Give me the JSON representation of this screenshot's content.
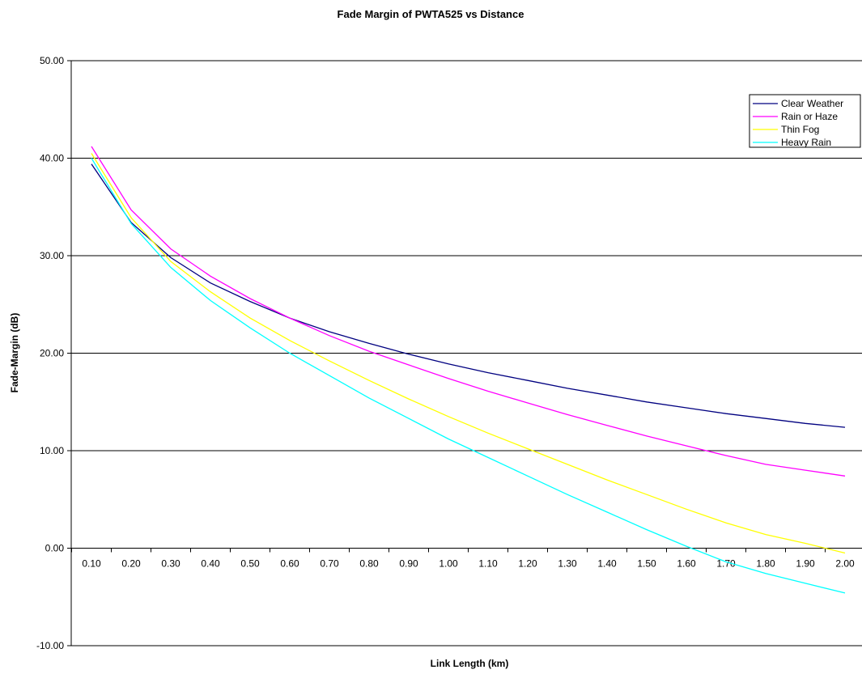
{
  "chart_data": {
    "type": "line",
    "title": "Fade Margin of PWTA525 vs Distance",
    "xlabel": "Link Length (km)",
    "ylabel": "Fade-Margin (dB)",
    "ylim": [
      -10,
      50
    ],
    "yticks": [
      "-10.00",
      "0.00",
      "10.00",
      "20.00",
      "30.00",
      "40.00",
      "50.00"
    ],
    "categories": [
      "0.10",
      "0.20",
      "0.30",
      "0.40",
      "0.50",
      "0.60",
      "0.70",
      "0.80",
      "0.90",
      "1.00",
      "1.10",
      "1.20",
      "1.30",
      "1.40",
      "1.50",
      "1.60",
      "1.70",
      "1.80",
      "1.90",
      "2.00"
    ],
    "grid": "horizontal",
    "legend_position": "top-right",
    "series": [
      {
        "name": "Clear Weather",
        "color": "#000080",
        "values": [
          39.4,
          33.4,
          29.8,
          27.2,
          25.3,
          23.6,
          22.2,
          21.0,
          19.9,
          18.9,
          18.0,
          17.2,
          16.4,
          15.7,
          15.0,
          14.4,
          13.8,
          13.3,
          12.8,
          12.4
        ]
      },
      {
        "name": "Rain or Haze",
        "color": "#FF00FF",
        "values": [
          41.2,
          34.7,
          30.7,
          27.9,
          25.6,
          23.6,
          21.8,
          20.2,
          18.8,
          17.4,
          16.1,
          14.9,
          13.7,
          12.6,
          11.5,
          10.5,
          9.5,
          8.6,
          8.0,
          7.4
        ]
      },
      {
        "name": "Thin Fog",
        "color": "#FFFF00",
        "values": [
          40.5,
          33.9,
          29.4,
          26.3,
          23.6,
          21.3,
          19.2,
          17.2,
          15.3,
          13.5,
          11.8,
          10.2,
          8.6,
          7.0,
          5.5,
          4.0,
          2.6,
          1.4,
          0.5,
          -0.5
        ]
      },
      {
        "name": "Heavy Rain",
        "color": "#00FFFF",
        "values": [
          40.0,
          33.3,
          28.8,
          25.4,
          22.6,
          20.0,
          17.7,
          15.4,
          13.3,
          11.2,
          9.3,
          7.4,
          5.5,
          3.7,
          1.9,
          0.2,
          -1.4,
          -2.6,
          -3.6,
          -4.6
        ]
      }
    ]
  }
}
